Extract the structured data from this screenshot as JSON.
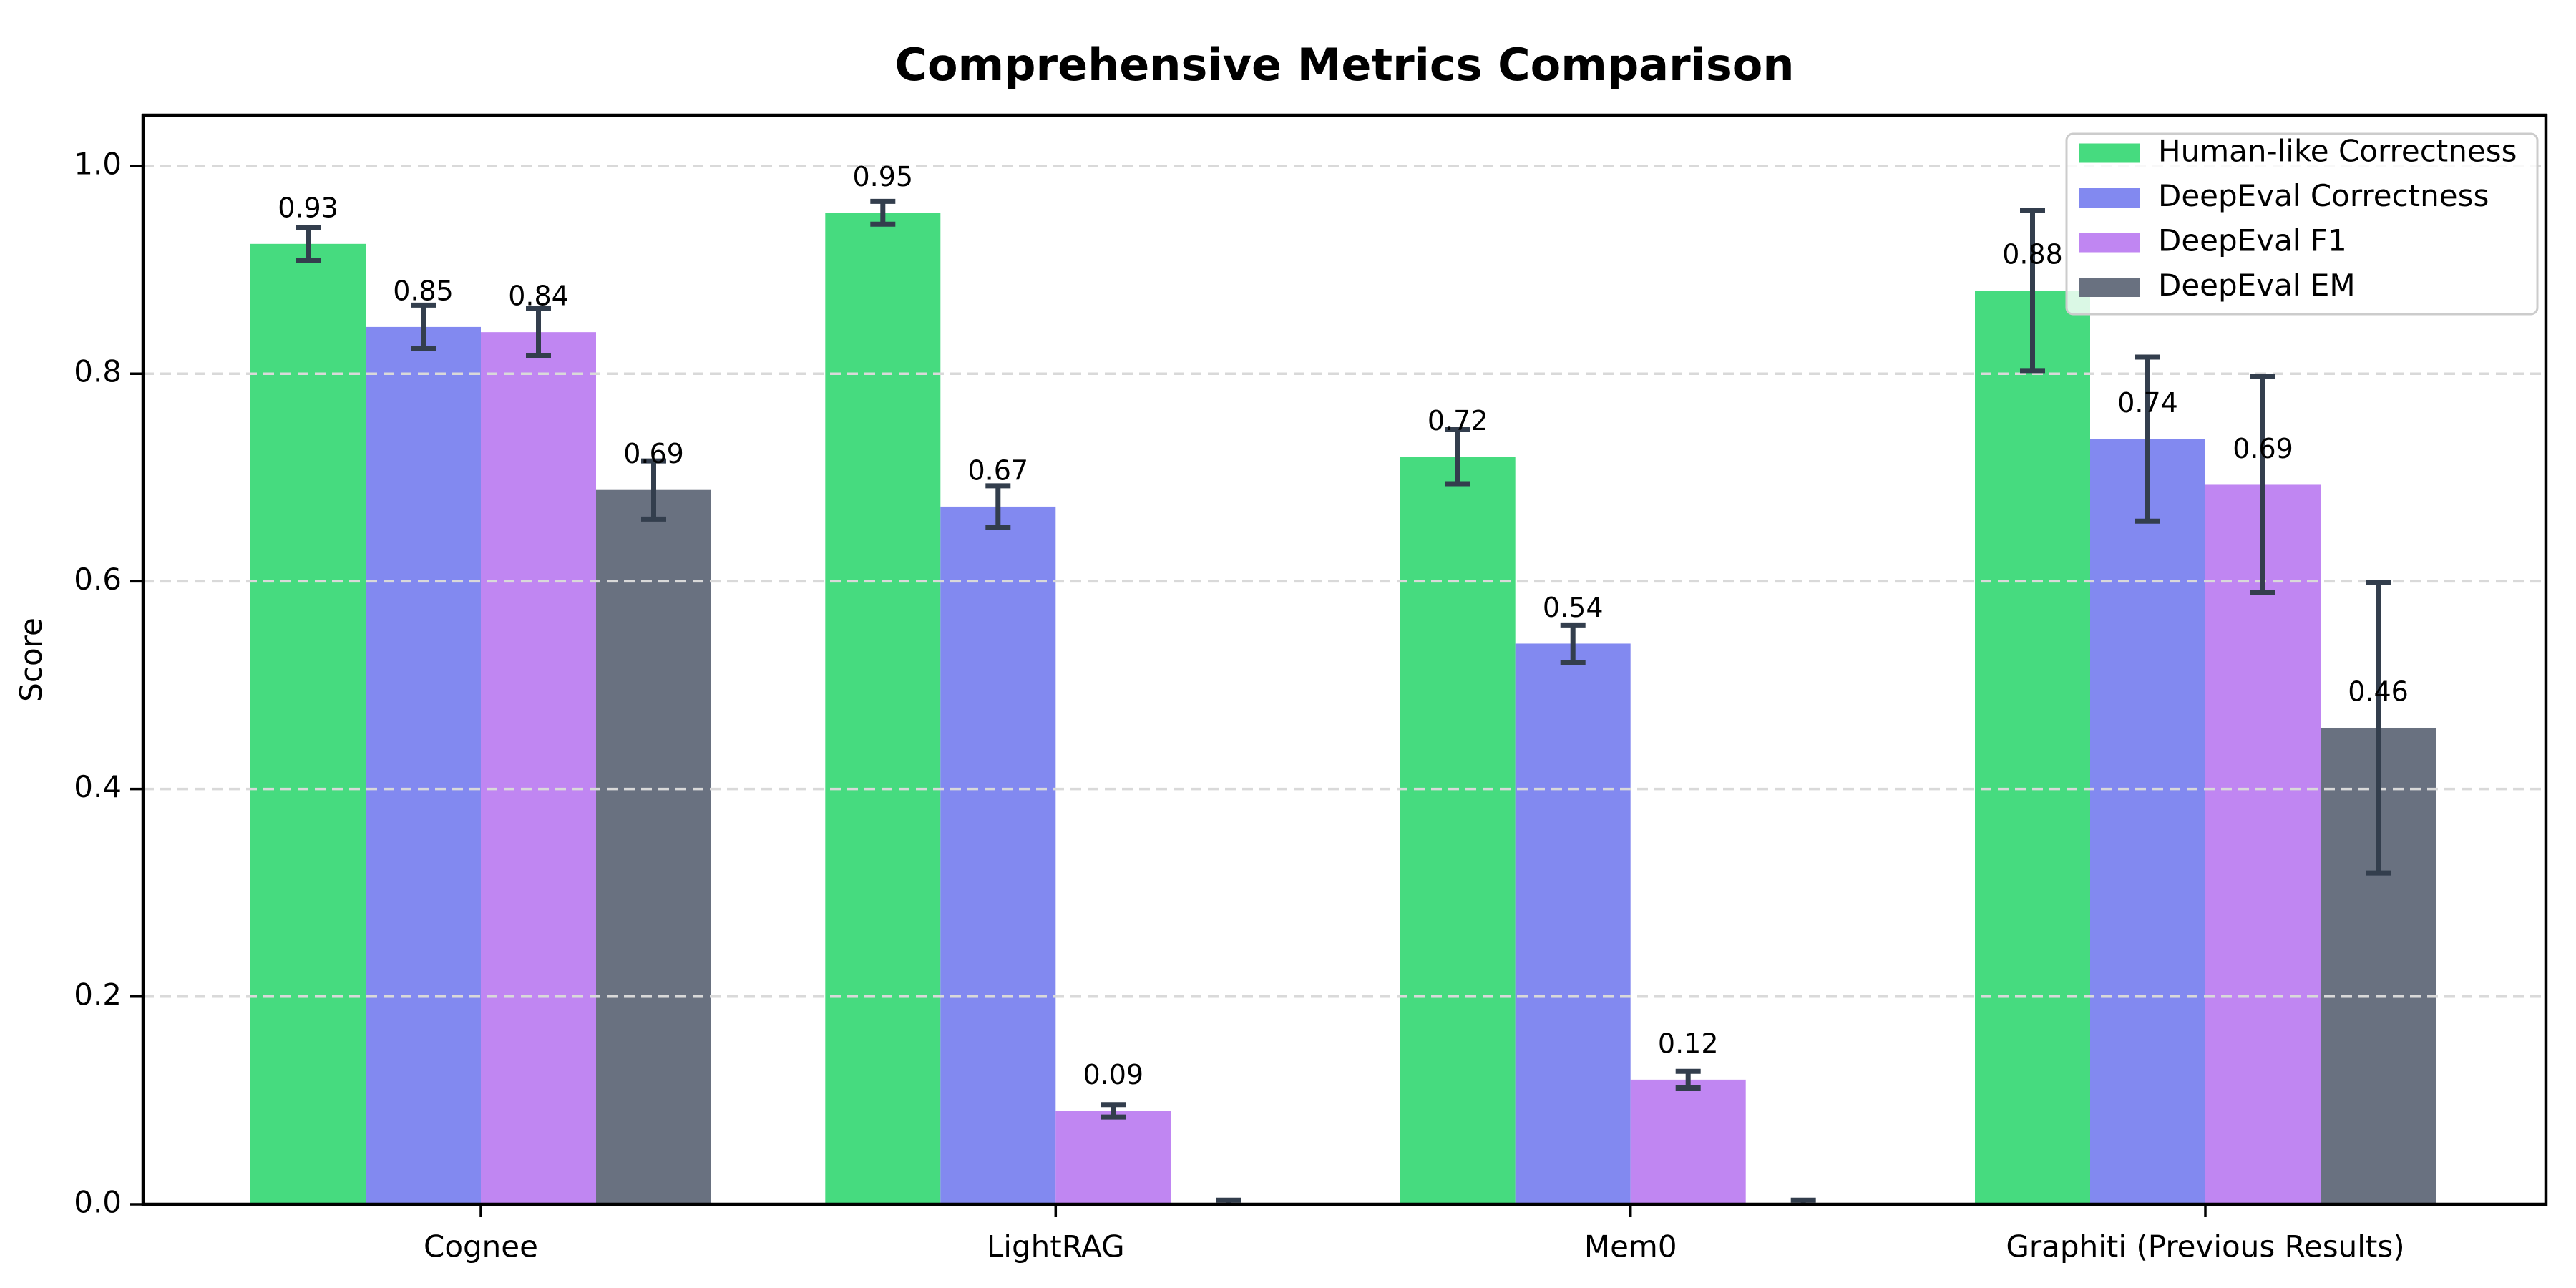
{
  "chart_data": {
    "type": "bar",
    "title": "Comprehensive Metrics Comparison",
    "ylabel": "Score",
    "xlabel": "",
    "categories": [
      "Cognee",
      "LightRAG",
      "Mem0",
      "Graphiti (Previous Results)"
    ],
    "series": [
      {
        "name": "Human-like Correctness",
        "color": "#46db7f",
        "values": [
          0.925,
          0.955,
          0.72,
          0.88
        ],
        "errors": [
          0.016,
          0.011,
          0.026,
          0.077
        ],
        "labels": [
          "0.93",
          "0.95",
          "0.72",
          "0.88"
        ]
      },
      {
        "name": "DeepEval Correctness",
        "color": "#8289f0",
        "values": [
          0.845,
          0.672,
          0.54,
          0.737
        ],
        "errors": [
          0.021,
          0.02,
          0.018,
          0.079
        ],
        "labels": [
          "0.85",
          "0.67",
          "0.54",
          "0.74"
        ]
      },
      {
        "name": "DeepEval F1",
        "color": "#c086f2",
        "values": [
          0.84,
          0.09,
          0.12,
          0.693
        ],
        "errors": [
          0.023,
          0.006,
          0.008,
          0.104
        ],
        "labels": [
          "0.84",
          "0.09",
          "0.12",
          "0.69"
        ]
      },
      {
        "name": "DeepEval EM",
        "color": "#697180",
        "values": [
          0.688,
          0.0,
          0.0,
          0.459
        ],
        "errors": [
          0.028,
          0.004,
          0.004,
          0.14
        ],
        "labels": [
          "0.69",
          null,
          null,
          "0.46"
        ]
      }
    ],
    "yticks": [
      0.0,
      0.2,
      0.4,
      0.6,
      0.8,
      1.0
    ],
    "ytick_labels": [
      "0.0",
      "0.2",
      "0.4",
      "0.6",
      "0.8",
      "1.0"
    ],
    "ylim": [
      0,
      1.049
    ],
    "grid": "horizontal-dashed",
    "grid_above_bars": true,
    "bar_value_labels_shown": true,
    "legend": {
      "position": "upper-right",
      "entries": [
        "Human-like Correctness",
        "DeepEval Correctness",
        "DeepEval F1",
        "DeepEval EM"
      ]
    },
    "colors": {
      "error_bar": "#333e4d",
      "grid_line": "#d9d9d9",
      "axis": "#000000",
      "legend_border": "#cccccc",
      "legend_background": "rgba(255,255,255,0.8)"
    }
  }
}
